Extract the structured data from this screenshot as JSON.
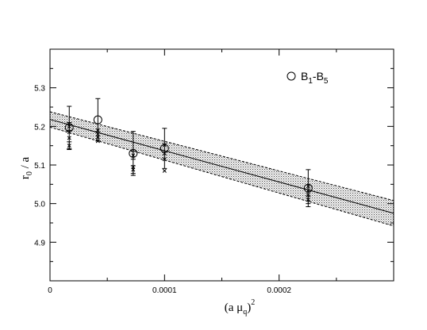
{
  "chart_data": {
    "type": "scatter",
    "title": "",
    "xlabel": {
      "main": "(a μ",
      "sub": "q",
      "close": ")",
      "sup": "2"
    },
    "ylabel": {
      "main": "r",
      "sub": "0",
      "rest": " / a"
    },
    "xlim": [
      0,
      0.0003
    ],
    "ylim": [
      4.8,
      5.4
    ],
    "x_ticks": [
      {
        "value": 0,
        "label": "0"
      },
      {
        "value": 0.0001,
        "label": "0.0001"
      },
      {
        "value": 0.0002,
        "label": "0.0002"
      }
    ],
    "y_ticks": [
      {
        "value": 4.9,
        "label": "4.9"
      },
      {
        "value": 5.0,
        "label": "5.0"
      },
      {
        "value": 5.1,
        "label": "5.1"
      },
      {
        "value": 5.2,
        "label": "5.2"
      },
      {
        "value": 5.3,
        "label": "5.3"
      }
    ],
    "grid": false,
    "legend": {
      "placement": "top-right",
      "entries": [
        {
          "marker": "circle",
          "main": "B",
          "sub1": "1",
          "mid": "-B",
          "sub2": "5"
        }
      ]
    },
    "series": [
      {
        "marker": "circle",
        "points": [
          {
            "x": 1.68e-05,
            "y": 5.197,
            "err": 0.055
          },
          {
            "x": 4.18e-05,
            "y": 5.217,
            "err": 0.055
          },
          {
            "x": 7.26e-05,
            "y": 5.13,
            "err": 0.057
          },
          {
            "x": 0.0001,
            "y": 5.143,
            "err": 0.052
          },
          {
            "x": 0.0002254,
            "y": 5.04,
            "err": 0.048
          }
        ]
      },
      {
        "marker": "cross",
        "points": [
          {
            "x": 1.68e-05,
            "y": 5.2,
            "err": 0.01
          },
          {
            "x": 1.68e-05,
            "y": 5.185,
            "err": 0.0
          },
          {
            "x": 1.68e-05,
            "y": 5.17,
            "err": 0.0
          },
          {
            "x": 1.68e-05,
            "y": 5.15,
            "err": 0.01
          },
          {
            "x": 4.18e-05,
            "y": 5.19,
            "err": 0.0
          },
          {
            "x": 4.18e-05,
            "y": 5.18,
            "err": 0.0
          },
          {
            "x": 4.18e-05,
            "y": 5.172,
            "err": 0.0
          },
          {
            "x": 4.18e-05,
            "y": 5.162,
            "err": 0.0
          },
          {
            "x": 7.26e-05,
            "y": 5.125,
            "err": 0.01
          },
          {
            "x": 7.26e-05,
            "y": 5.095,
            "err": 0.0
          },
          {
            "x": 7.26e-05,
            "y": 5.088,
            "err": 0.01
          },
          {
            "x": 0.0001,
            "y": 5.152,
            "err": 0.0
          },
          {
            "x": 0.0001,
            "y": 5.13,
            "err": 0.0
          },
          {
            "x": 0.0001,
            "y": 5.115,
            "err": 0.0
          },
          {
            "x": 0.0001,
            "y": 5.085,
            "err": 0.0
          },
          {
            "x": 0.0002254,
            "y": 5.045,
            "err": 0.0
          },
          {
            "x": 0.0002254,
            "y": 5.033,
            "err": 0.0
          },
          {
            "x": 0.0002254,
            "y": 5.022,
            "err": 0.0
          },
          {
            "x": 0.0002254,
            "y": 5.01,
            "err": 0.01
          }
        ]
      }
    ],
    "fit_line": {
      "x": [
        0,
        0.0003
      ],
      "y": [
        5.218,
        4.975
      ]
    },
    "error_band": {
      "x": [
        0,
        0.0003
      ],
      "upper": [
        5.238,
        5.008
      ],
      "lower": [
        5.198,
        4.942
      ]
    }
  }
}
